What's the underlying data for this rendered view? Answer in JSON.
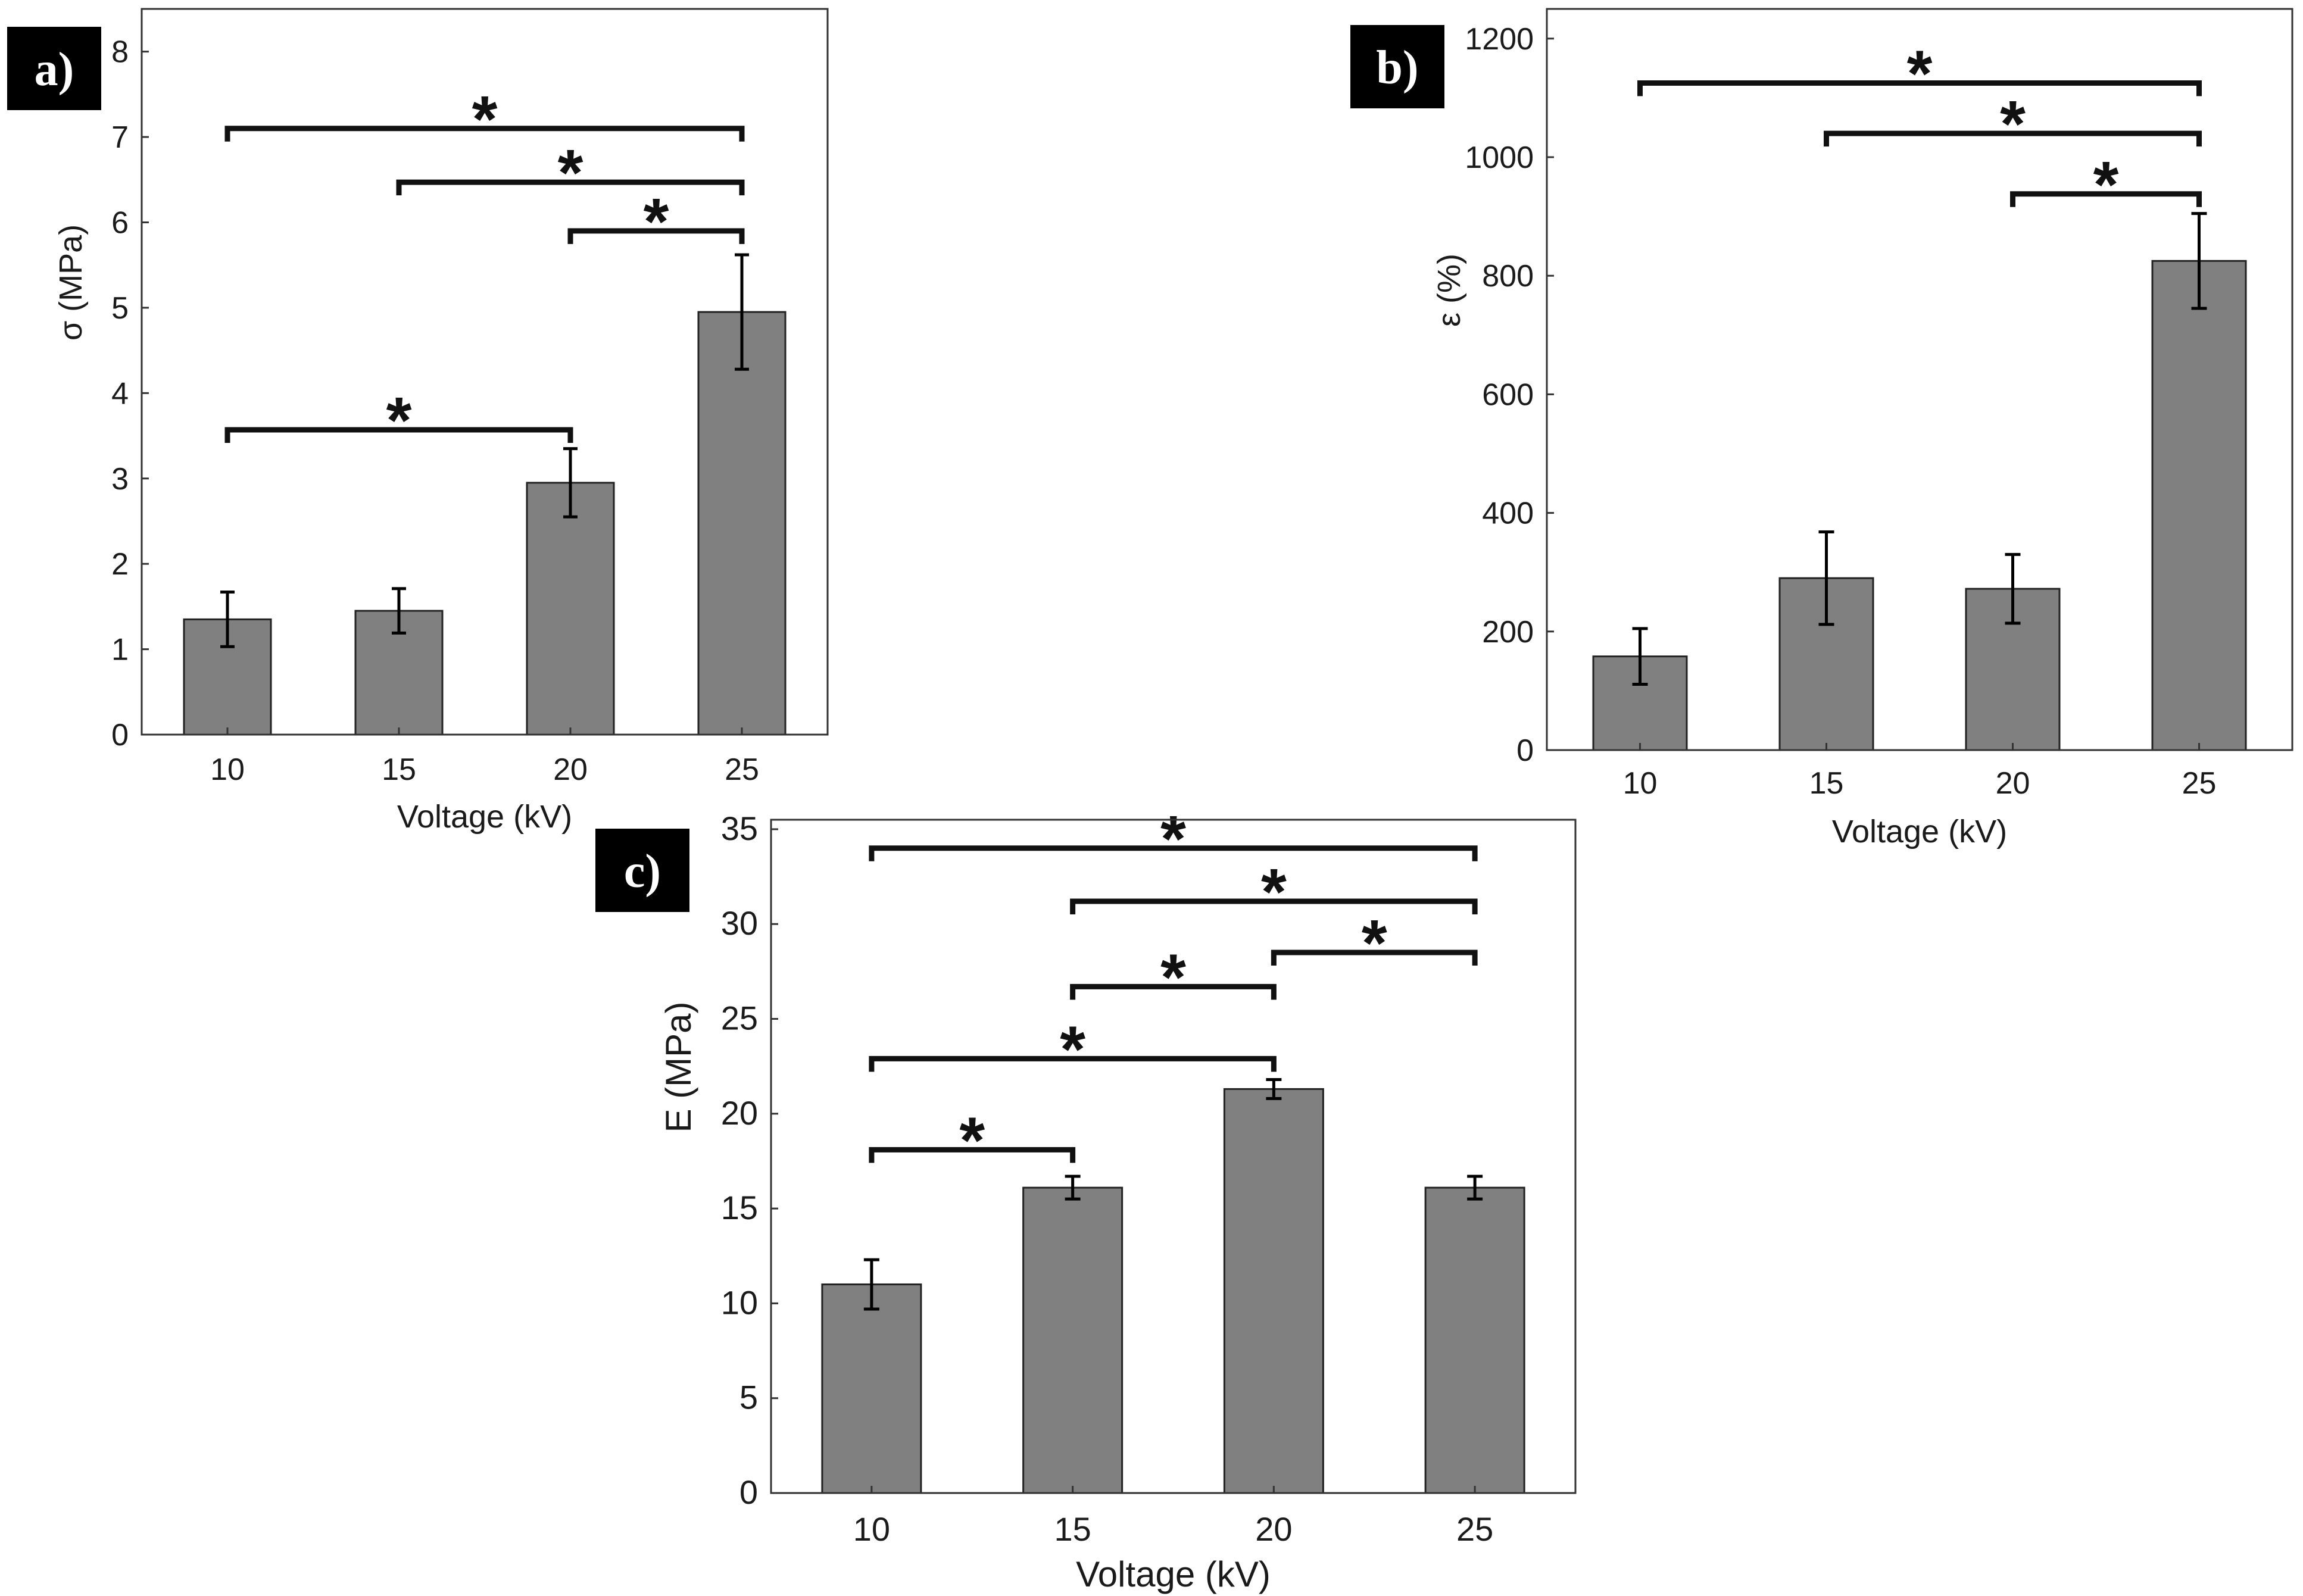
{
  "chart_data": [
    {
      "panel": "a)",
      "type": "bar",
      "title": "",
      "xlabel": "Voltage (kV)",
      "ylabel": "σ (MPa)",
      "categories": [
        "10",
        "15",
        "20",
        "25"
      ],
      "values": [
        1.35,
        1.45,
        2.95,
        4.95
      ],
      "errors": [
        0.32,
        0.26,
        0.4,
        0.67
      ],
      "ylim": [
        0,
        8.5
      ],
      "yticks": [
        0,
        1,
        2,
        3,
        4,
        5,
        6,
        7,
        8
      ],
      "bar_color": "#808080",
      "significance": [
        {
          "from": "10",
          "to": "25",
          "level": 7.1,
          "label": "*"
        },
        {
          "from": "15",
          "to": "25",
          "level": 6.47,
          "label": "*"
        },
        {
          "from": "20",
          "to": "25",
          "level": 5.9,
          "label": "*"
        },
        {
          "from": "10",
          "to": "20",
          "level": 3.57,
          "label": "*"
        }
      ]
    },
    {
      "panel": "b)",
      "type": "bar",
      "title": "",
      "xlabel": "Voltage (kV)",
      "ylabel": "ε (%)",
      "categories": [
        "10",
        "15",
        "20",
        "25"
      ],
      "values": [
        158,
        290,
        272,
        825
      ],
      "errors": [
        47,
        78,
        58,
        80
      ],
      "ylim": [
        0,
        1250
      ],
      "yticks": [
        0,
        200,
        400,
        600,
        800,
        1000,
        1200
      ],
      "bar_color": "#808080",
      "significance": [
        {
          "from": "10",
          "to": "25",
          "level": 1125,
          "label": "*"
        },
        {
          "from": "15",
          "to": "25",
          "level": 1040,
          "label": "*"
        },
        {
          "from": "20",
          "to": "25",
          "level": 938,
          "label": "*"
        }
      ]
    },
    {
      "panel": "c)",
      "type": "bar",
      "title": "",
      "xlabel": "Voltage (kV)",
      "ylabel": "E (MPa)",
      "categories": [
        "10",
        "15",
        "20",
        "25"
      ],
      "values": [
        11.0,
        16.1,
        21.3,
        16.1
      ],
      "errors": [
        1.3,
        0.6,
        0.5,
        0.6
      ],
      "ylim": [
        0,
        35.5
      ],
      "yticks": [
        0,
        5,
        10,
        15,
        20,
        25,
        30,
        35
      ],
      "bar_color": "#808080",
      "significance": [
        {
          "from": "10",
          "to": "25",
          "level": 34.0,
          "label": "*"
        },
        {
          "from": "15",
          "to": "25",
          "level": 31.2,
          "label": "*"
        },
        {
          "from": "20",
          "to": "25",
          "level": 28.5,
          "label": "*"
        },
        {
          "from": "15",
          "to": "20",
          "level": 26.7,
          "label": "*"
        },
        {
          "from": "10",
          "to": "20",
          "level": 22.9,
          "label": "*"
        },
        {
          "from": "10",
          "to": "15",
          "level": 18.1,
          "label": "*"
        }
      ]
    }
  ]
}
